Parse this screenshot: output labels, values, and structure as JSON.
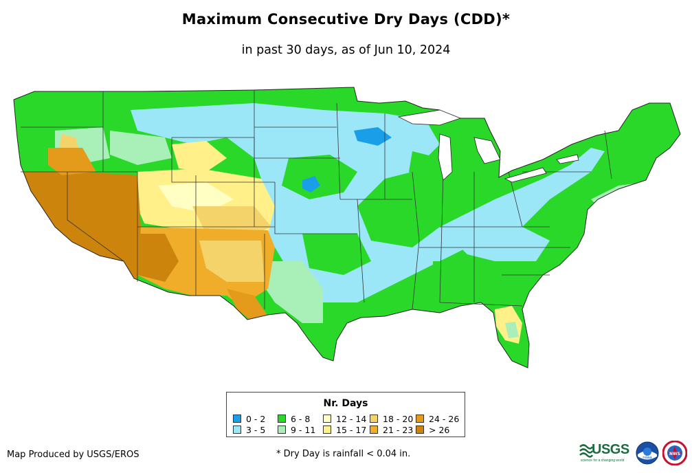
{
  "title": "Maximum Consecutive Dry Days (CDD)*",
  "subtitle": "in past 30 days, as of Jun 10, 2024",
  "legend": {
    "title": "Nr. Days",
    "items": [
      {
        "label": "0 - 2",
        "color": "#1b9ee8"
      },
      {
        "label": "3 - 5",
        "color": "#9be7f7"
      },
      {
        "label": "6 - 8",
        "color": "#2ad82a"
      },
      {
        "label": "9 - 11",
        "color": "#a8f0b8"
      },
      {
        "label": "12 - 14",
        "color": "#ffffc4"
      },
      {
        "label": "15 - 17",
        "color": "#fff08a"
      },
      {
        "label": "18 - 20",
        "color": "#f4d36a"
      },
      {
        "label": "21 - 23",
        "color": "#f0ad2a"
      },
      {
        "label": "24 - 26",
        "color": "#e49a1a"
      },
      {
        "label": "> 26",
        "color": "#cc840c"
      }
    ]
  },
  "credit": "Map Produced by USGS/EROS",
  "footnote": "* Dry Day is rainfall < 0.04 in.",
  "logos": {
    "usgs_text": "USGS",
    "usgs_tagline": "science for a changing world",
    "noaa_text": "noaa",
    "nws_text": "NWS"
  }
}
